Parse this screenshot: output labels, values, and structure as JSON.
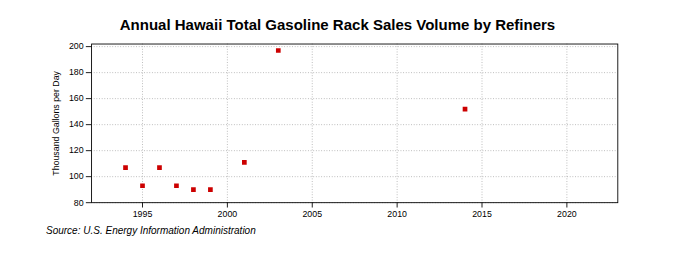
{
  "chart_data": {
    "type": "scatter",
    "title": "Annual Hawaii Total Gasoline Rack Sales Volume by Refiners",
    "ylabel": "Thousand Gallons per Day",
    "source": "Source: U.S. Energy Information Administration",
    "x": [
      1994,
      1995,
      1996,
      1997,
      1998,
      1999,
      2001,
      2003,
      2014
    ],
    "values": [
      107,
      93,
      107,
      93,
      90,
      90,
      111,
      197,
      152
    ],
    "color": "#cc0000",
    "marker": "square",
    "xlim": [
      1992,
      2023
    ],
    "ylim": [
      80,
      202
    ],
    "xticks": [
      1995,
      2000,
      2005,
      2010,
      2015,
      2020
    ],
    "yticks": [
      80,
      100,
      120,
      140,
      160,
      180,
      200
    ],
    "grid": true
  }
}
